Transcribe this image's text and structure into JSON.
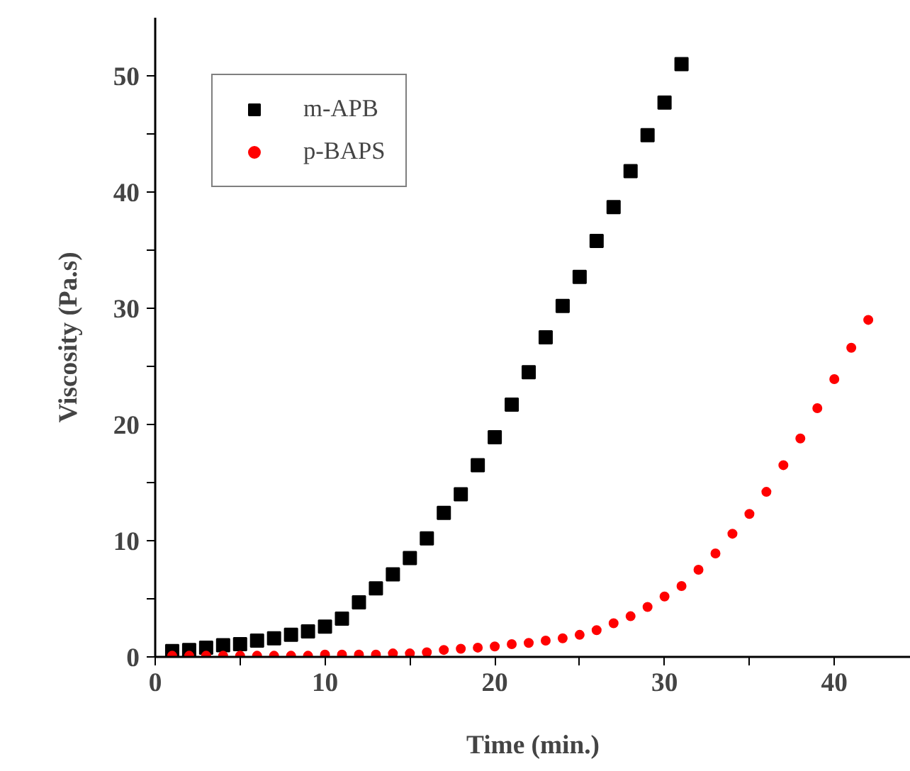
{
  "chart_data": {
    "type": "scatter",
    "xlabel": "Time (min.)",
    "ylabel": "Viscosity (Pa.s)",
    "xlim": [
      0,
      44.5
    ],
    "ylim": [
      0,
      55
    ],
    "xticks": [
      0,
      {
        "value": 5,
        "label": null
      },
      10,
      {
        "value": 15,
        "label": null
      },
      20,
      {
        "value": 25,
        "label": null
      },
      30,
      {
        "value": 35,
        "label": null
      },
      40
    ],
    "yticks": [
      0,
      {
        "value": 5,
        "label": null
      },
      10,
      {
        "value": 15,
        "label": null
      },
      20,
      {
        "value": 25,
        "label": null
      },
      30,
      {
        "value": 35,
        "label": null
      },
      40,
      {
        "value": 45,
        "label": null
      },
      50
    ],
    "grid": false,
    "legend": "top left",
    "series": [
      {
        "name": "m-APB",
        "color": "#000000",
        "marker": "square",
        "x": [
          1,
          2,
          3,
          4,
          5,
          6,
          7,
          8,
          9,
          10,
          11,
          12,
          13,
          14,
          15,
          16,
          17,
          18,
          19,
          20,
          21,
          22,
          23,
          24,
          25,
          26,
          27,
          28,
          29,
          30,
          31
        ],
        "values": [
          0.5,
          0.6,
          0.8,
          1.0,
          1.1,
          1.4,
          1.6,
          1.9,
          2.2,
          2.6,
          3.3,
          4.7,
          5.9,
          7.1,
          8.5,
          10.2,
          12.4,
          14.0,
          16.5,
          18.9,
          21.7,
          24.5,
          27.5,
          30.2,
          32.7,
          35.8,
          38.7,
          41.8,
          44.9,
          47.7,
          51.0
        ]
      },
      {
        "name": "p-BAPS",
        "color": "#ff0000",
        "marker": "circle",
        "x": [
          1,
          2,
          3,
          4,
          5,
          6,
          7,
          8,
          9,
          10,
          11,
          12,
          13,
          14,
          15,
          16,
          17,
          18,
          19,
          20,
          21,
          22,
          23,
          24,
          25,
          26,
          27,
          28,
          29,
          30,
          31,
          32,
          33,
          34,
          35,
          36,
          37,
          38,
          39,
          40,
          41,
          42
        ],
        "values": [
          0.1,
          0.1,
          0.1,
          0.1,
          0.1,
          0.1,
          0.1,
          0.1,
          0.1,
          0.2,
          0.2,
          0.2,
          0.2,
          0.3,
          0.3,
          0.4,
          0.6,
          0.7,
          0.8,
          0.9,
          1.1,
          1.2,
          1.4,
          1.6,
          1.9,
          2.3,
          2.9,
          3.5,
          4.3,
          5.2,
          6.1,
          7.5,
          8.9,
          10.6,
          12.3,
          14.2,
          16.5,
          18.8,
          21.4,
          23.9,
          26.6,
          29.0
        ]
      }
    ]
  }
}
